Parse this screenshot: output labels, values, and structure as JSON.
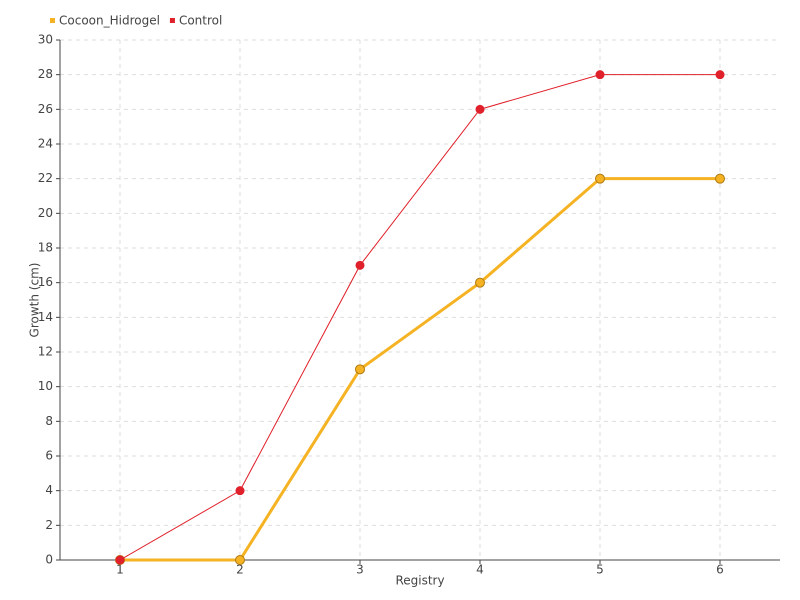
{
  "chart_data": {
    "type": "line",
    "x_label": "Registry",
    "y_label": "Growth (cm)",
    "x": [
      1,
      2,
      3,
      4,
      5,
      6
    ],
    "xlim": [
      0.5,
      6.5
    ],
    "xticks": [
      1,
      2,
      3,
      4,
      5,
      6
    ],
    "ylim": [
      0,
      30
    ],
    "yticks": [
      0,
      2,
      4,
      6,
      8,
      10,
      12,
      14,
      16,
      18,
      20,
      22,
      24,
      26,
      28,
      30
    ],
    "grid": true,
    "legend": "top-left",
    "series": [
      {
        "name": "Cocoon_Hidrogel",
        "color": "#f5b324",
        "values": [
          0,
          0,
          11,
          16,
          22,
          22
        ]
      },
      {
        "name": "Control",
        "color": "#e0202a",
        "values": [
          0,
          4,
          17,
          26,
          28,
          28
        ]
      }
    ]
  }
}
